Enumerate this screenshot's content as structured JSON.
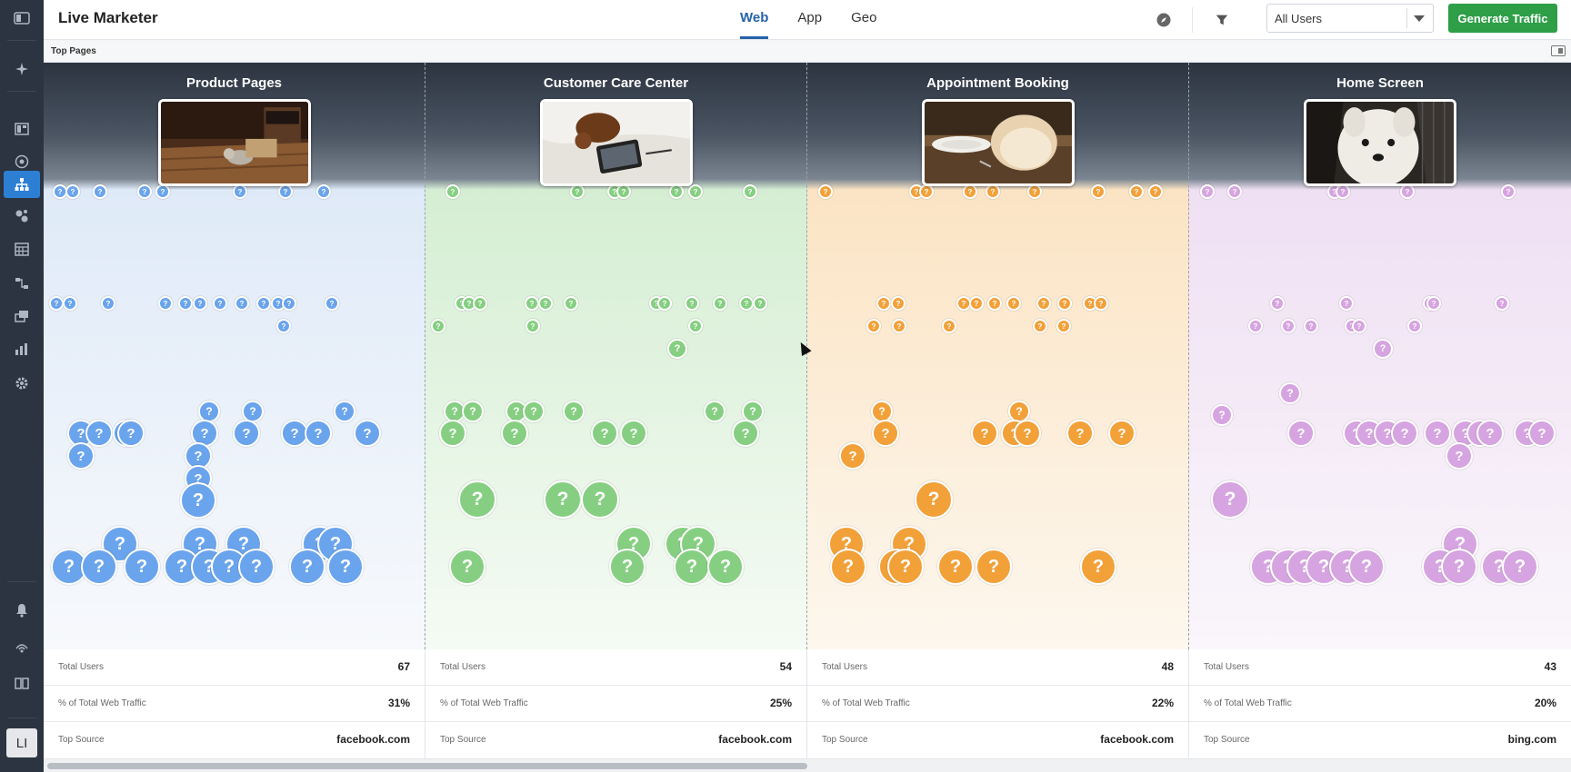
{
  "app": {
    "title": "Live Marketer"
  },
  "nav": {
    "tabs": [
      "Web",
      "App",
      "Geo"
    ],
    "active_tab": "Web"
  },
  "filter": {
    "selected": "All Users"
  },
  "actions": {
    "generate_label": "Generate Traffic"
  },
  "section": {
    "title": "Top Pages"
  },
  "sidebar": {
    "icons": [
      "menu-toggle-icon",
      "sparkle-icon",
      "dashboard-icon",
      "target-icon",
      "sitemap-icon",
      "segments-icon",
      "calendar-icon",
      "flow-icon",
      "layers-icon",
      "analytics-icon",
      "settings-icon",
      "notifications-icon",
      "broadcast-icon",
      "docs-icon"
    ],
    "active": "sitemap-icon",
    "avatar_initials": "LI"
  },
  "header_icons": [
    "compass-icon",
    "filter-icon"
  ],
  "bubble_glyph": "?",
  "colors": {
    "blue": "#6aa4ec",
    "green": "#86cf82",
    "orange": "#f2a139",
    "purple": "#d6a4e0",
    "primary": "#2e9e47",
    "accent": "#2563a8"
  },
  "pages": [
    {
      "title": "Product Pages",
      "color": "blue",
      "thumbnail": "cat-on-wood-floor",
      "stats": {
        "total_users_label": "Total Users",
        "total_users": "67",
        "traffic_label": "% of Total Web Traffic",
        "traffic": "31%",
        "source_label": "Top Source",
        "source": "facebook.com"
      }
    },
    {
      "title": "Customer Care Center",
      "color": "green",
      "thumbnail": "puppy-with-tablet",
      "stats": {
        "total_users_label": "Total Users",
        "total_users": "54",
        "traffic_label": "% of Total Web Traffic",
        "traffic": "25%",
        "source_label": "Top Source",
        "source": "facebook.com"
      }
    },
    {
      "title": "Appointment Booking",
      "color": "orange",
      "thumbnail": "puppy-eating",
      "stats": {
        "total_users_label": "Total Users",
        "total_users": "48",
        "traffic_label": "% of Total Web Traffic",
        "traffic": "22%",
        "source_label": "Top Source",
        "source": "facebook.com"
      }
    },
    {
      "title": "Home Screen",
      "color": "purple",
      "thumbnail": "white-puppy",
      "stats": {
        "total_users_label": "Total Users",
        "total_users": "43",
        "traffic_label": "% of Total Web Traffic",
        "traffic": "20%",
        "source_label": "Top Source",
        "source": "bing.com"
      }
    }
  ]
}
